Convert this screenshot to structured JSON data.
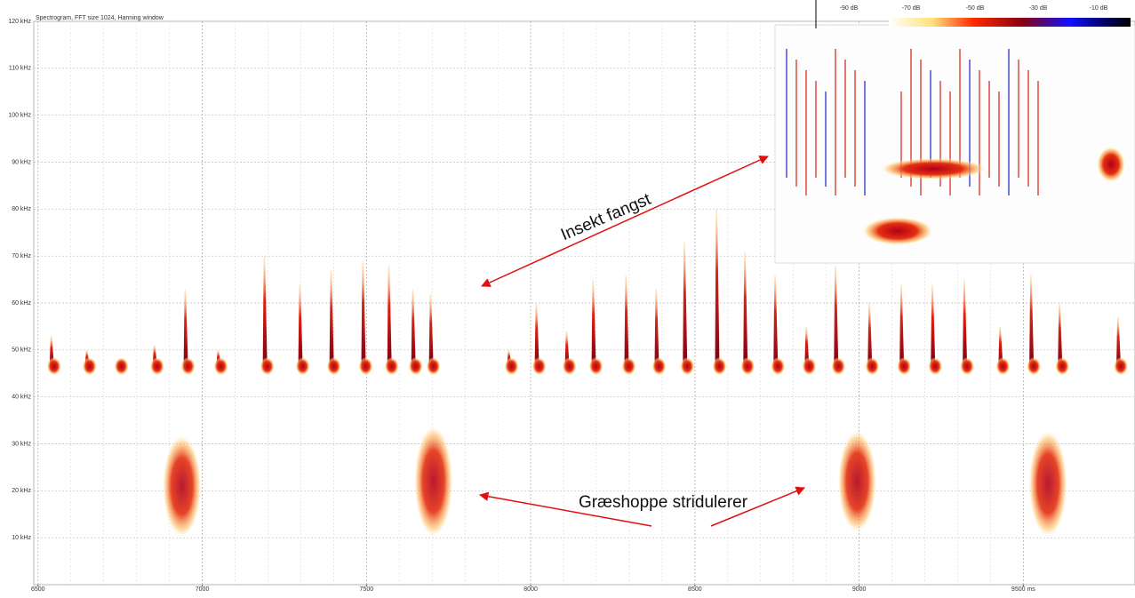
{
  "chart_data": {
    "type": "spectrogram",
    "title": "Spectrogram, FFT size 1024, Hanning window",
    "xlim": [
      6487,
      9840
    ],
    "ylim": [
      0,
      120
    ],
    "xticks": [
      6500,
      7000,
      7500,
      8000,
      8500,
      9000,
      {
        "value": 9500,
        "label": "9500 ms"
      }
    ],
    "yticks": [
      {
        "value": 10,
        "label": "10 kHz"
      },
      {
        "value": 20,
        "label": "20 kHz"
      },
      {
        "value": 30,
        "label": "30 kHz"
      },
      {
        "value": 40,
        "label": "40 kHz"
      },
      {
        "value": 50,
        "label": "50 kHz"
      },
      {
        "value": 60,
        "label": "60 kHz"
      },
      {
        "value": 70,
        "label": "70 kHz"
      },
      {
        "value": 80,
        "label": "80 kHz"
      },
      {
        "value": 90,
        "label": "90 kHz"
      },
      {
        "value": 100,
        "label": "100 kHz"
      },
      {
        "value": 110,
        "label": "110 kHz"
      },
      {
        "value": 120,
        "label": "120 kHz"
      }
    ],
    "grid": true,
    "colorbar_labels": [
      "-90 dB",
      "-70 dB",
      "-50 dB",
      "-30 dB",
      "-10 dB"
    ],
    "annotations": [
      "Insekt fangst",
      "Græshoppe stridulerer"
    ],
    "call_end": 45,
    "calls": {
      "x": [
        6538,
        6646,
        6743,
        6852,
        6946,
        7046,
        7187,
        7295,
        7390,
        7487,
        7566,
        7639,
        7693,
        7931,
        8015,
        8107,
        8188,
        8288,
        8380,
        8466,
        8564,
        8650,
        8742,
        8837,
        8926,
        9029,
        9126,
        9221,
        9318,
        9427,
        9521,
        9608,
        9786
      ],
      "values": [
        53,
        50,
        47,
        51,
        63,
        50,
        70,
        64,
        67,
        69,
        68,
        63,
        62,
        50,
        60,
        54,
        65,
        66,
        63,
        73,
        80,
        71,
        66,
        55,
        68,
        60,
        64,
        64,
        65,
        55,
        66,
        60,
        57
      ]
    },
    "bursts": {
      "x": [
        6938,
        7704,
        8994,
        9575
      ],
      "low": [
        10,
        10,
        11,
        10
      ],
      "high": [
        32,
        34,
        33,
        33
      ]
    }
  }
}
